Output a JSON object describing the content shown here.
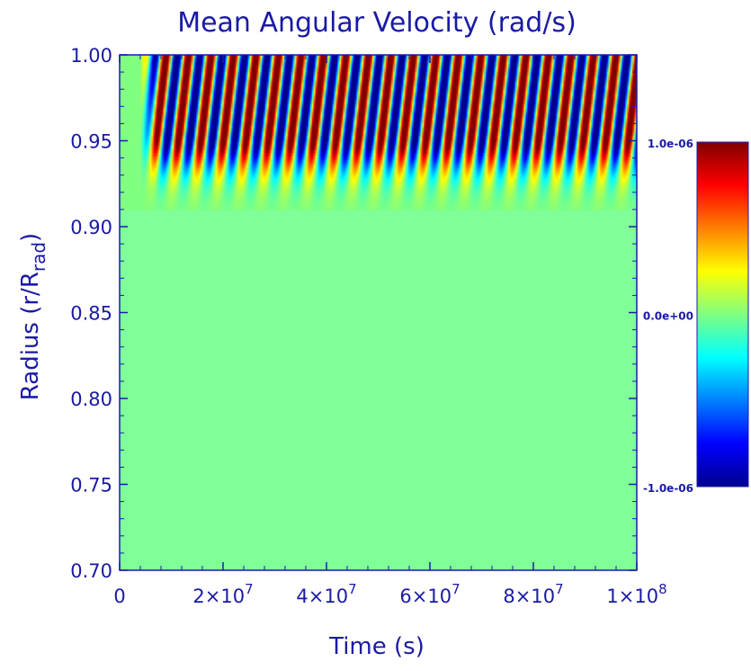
{
  "chart_data": {
    "type": "heatmap",
    "title": "Mean Angular Velocity (rad/s)",
    "xlabel": "Time (s)",
    "ylabel_main": "Radius (r/R",
    "ylabel_sub": "rad",
    "ylabel_close": ")",
    "xlim": [
      0,
      100000000
    ],
    "ylim": [
      0.7,
      1.0
    ],
    "x_ticks": [
      {
        "value": 0,
        "mantissa": "0",
        "exponent": ""
      },
      {
        "value": 20000000,
        "mantissa": "2×10",
        "exponent": "7"
      },
      {
        "value": 40000000,
        "mantissa": "4×10",
        "exponent": "7"
      },
      {
        "value": 60000000,
        "mantissa": "6×10",
        "exponent": "7"
      },
      {
        "value": 80000000,
        "mantissa": "8×10",
        "exponent": "7"
      },
      {
        "value": 100000000,
        "mantissa": "1×10",
        "exponent": "8"
      }
    ],
    "y_ticks": [
      {
        "value": 1.0,
        "label": "1.00"
      },
      {
        "value": 0.95,
        "label": "0.95"
      },
      {
        "value": 0.9,
        "label": "0.90"
      },
      {
        "value": 0.85,
        "label": "0.85"
      },
      {
        "value": 0.8,
        "label": "0.80"
      },
      {
        "value": 0.75,
        "label": "0.75"
      },
      {
        "value": 0.7,
        "label": "0.70"
      }
    ],
    "colorbar": {
      "range": [
        -1e-06,
        1e-06
      ],
      "labels": [
        {
          "value": 1e-06,
          "label": "1.0e-06"
        },
        {
          "value": 0,
          "label": "0.0e+00"
        },
        {
          "value": -1e-06,
          "label": "-1.0e-06"
        }
      ],
      "colormap": "jet"
    },
    "pattern": {
      "onset_time": 4000000,
      "period": 4350000,
      "band_count": 22,
      "oscillation_region_radius": [
        0.9,
        1.0
      ],
      "background_value": 0
    }
  },
  "colors": {
    "text": "#1a1aa6",
    "background_field": "#80ff98"
  }
}
